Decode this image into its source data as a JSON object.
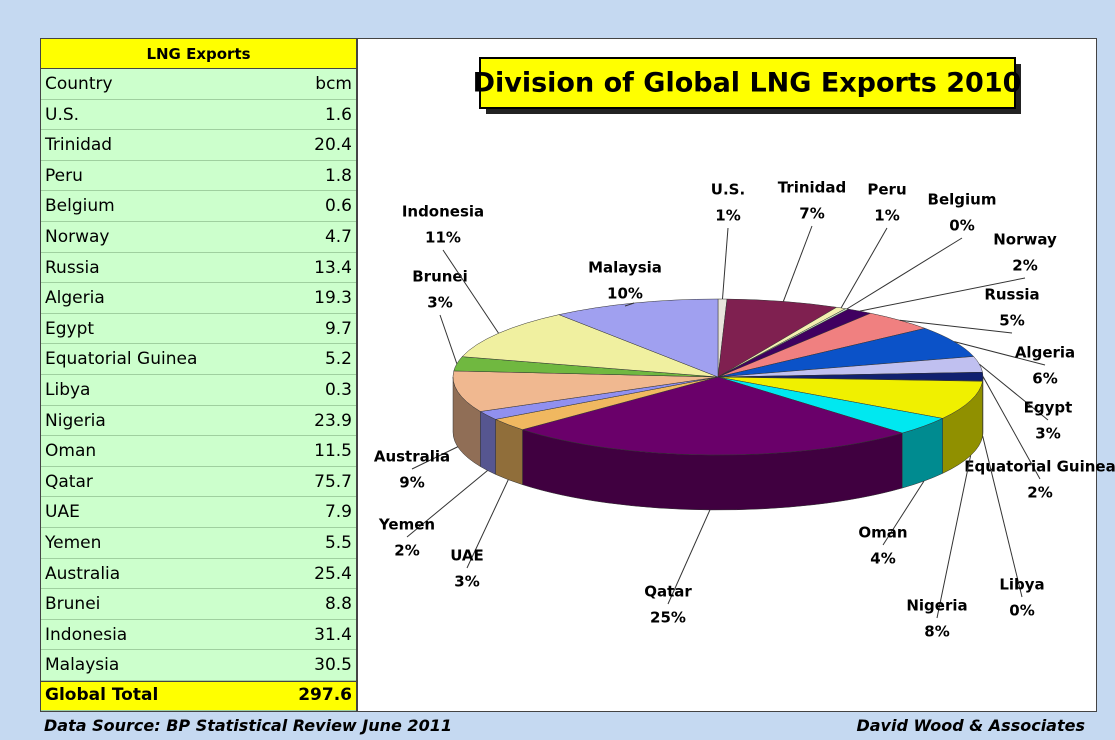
{
  "table": {
    "title": "LNG Exports",
    "header": [
      "Country",
      "bcm"
    ],
    "rows": [
      [
        "U.S.",
        1.6
      ],
      [
        "Trinidad",
        20.4
      ],
      [
        "Peru",
        1.8
      ],
      [
        "Belgium",
        0.6
      ],
      [
        "Norway",
        4.7
      ],
      [
        "Russia",
        13.4
      ],
      [
        "Algeria",
        19.3
      ],
      [
        "Egypt",
        9.7
      ],
      [
        "Equatorial Guinea",
        5.2
      ],
      [
        "Libya",
        0.3
      ],
      [
        "Nigeria",
        23.9
      ],
      [
        "Oman",
        11.5
      ],
      [
        "Qatar",
        75.7
      ],
      [
        "UAE",
        7.9
      ],
      [
        "Yemen",
        5.5
      ],
      [
        "Australia",
        25.4
      ],
      [
        "Brunei",
        8.8
      ],
      [
        "Indonesia",
        31.4
      ],
      [
        "Malaysia",
        30.5
      ]
    ],
    "total": [
      "Global Total",
      297.6
    ]
  },
  "chart_data": {
    "type": "pie",
    "title": "Division of Global LNG Exports 2010",
    "categories": [
      "U.S.",
      "Trinidad",
      "Peru",
      "Belgium",
      "Norway",
      "Russia",
      "Algeria",
      "Egypt",
      "Equatorial Guinea",
      "Libya",
      "Nigeria",
      "Oman",
      "Qatar",
      "UAE",
      "Yemen",
      "Australia",
      "Brunei",
      "Indonesia",
      "Malaysia"
    ],
    "values": [
      0.54,
      6.85,
      0.6,
      0.2,
      1.58,
      4.5,
      6.49,
      3.26,
      1.75,
      0.1,
      8.03,
      3.86,
      25.44,
      2.65,
      1.85,
      8.53,
      2.96,
      10.55,
      10.25
    ],
    "value_labels": [
      "1%",
      "7%",
      "1%",
      "0%",
      "2%",
      "5%",
      "6%",
      "3%",
      "2%",
      "0%",
      "8%",
      "4%",
      "25%",
      "3%",
      "2%",
      "9%",
      "3%",
      "11%",
      "10%"
    ],
    "colors": [
      "#e8e4dc",
      "#7f2050",
      "#f4f0b0",
      "#c8e0c0",
      "#400060",
      "#f08080",
      "#0b52c8",
      "#c0c0f0",
      "#102070",
      "#6090c0",
      "#f0f000",
      "#00e8f0",
      "#6a006a",
      "#f0b860",
      "#9090f0",
      "#f0b890",
      "#70b840",
      "#f0f0a0",
      "#a0a0f0"
    ]
  },
  "footer": {
    "source": "Data Source: BP Statistical Review June 2011",
    "author": "David Wood & Associates"
  }
}
